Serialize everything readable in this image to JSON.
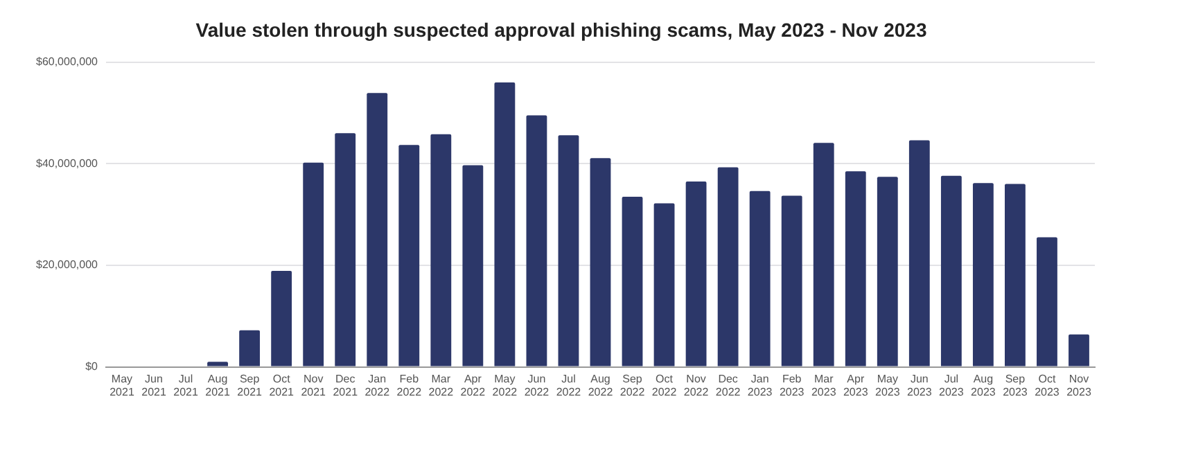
{
  "chart_data": {
    "type": "bar",
    "title": "Value stolen through suspected approval phishing scams, May 2023 - Nov 2023",
    "categories": [
      "May 2021",
      "Jun 2021",
      "Jul 2021",
      "Aug 2021",
      "Sep 2021",
      "Oct 2021",
      "Nov 2021",
      "Dec 2021",
      "Jan 2022",
      "Feb 2022",
      "Mar 2022",
      "Apr 2022",
      "May 2022",
      "Jun 2022",
      "Jul 2022",
      "Aug 2022",
      "Sep 2022",
      "Oct 2022",
      "Nov 2022",
      "Dec 2022",
      "Jan 2023",
      "Feb 2023",
      "Mar 2023",
      "Apr 2023",
      "May 2023",
      "Jun 2023",
      "Jul 2023",
      "Aug 2023",
      "Sep 2023",
      "Oct 2023",
      "Nov 2023"
    ],
    "values": [
      0,
      0,
      0,
      1000000,
      7200000,
      18900000,
      40200000,
      46000000,
      53900000,
      43700000,
      45800000,
      39700000,
      56000000,
      49500000,
      45600000,
      41100000,
      33500000,
      32200000,
      36500000,
      39300000,
      34600000,
      33700000,
      44100000,
      38500000,
      37400000,
      44600000,
      37600000,
      36200000,
      36000000,
      25500000,
      6400000
    ],
    "color": "#2c3769",
    "ylim": [
      0,
      60000000
    ],
    "yticks": [
      {
        "value": 0,
        "label": "$0"
      },
      {
        "value": 20000000,
        "label": "$20,000,000"
      },
      {
        "value": 40000000,
        "label": "$40,000,000"
      },
      {
        "value": 60000000,
        "label": "$60,000,000"
      }
    ],
    "grid": "y"
  }
}
